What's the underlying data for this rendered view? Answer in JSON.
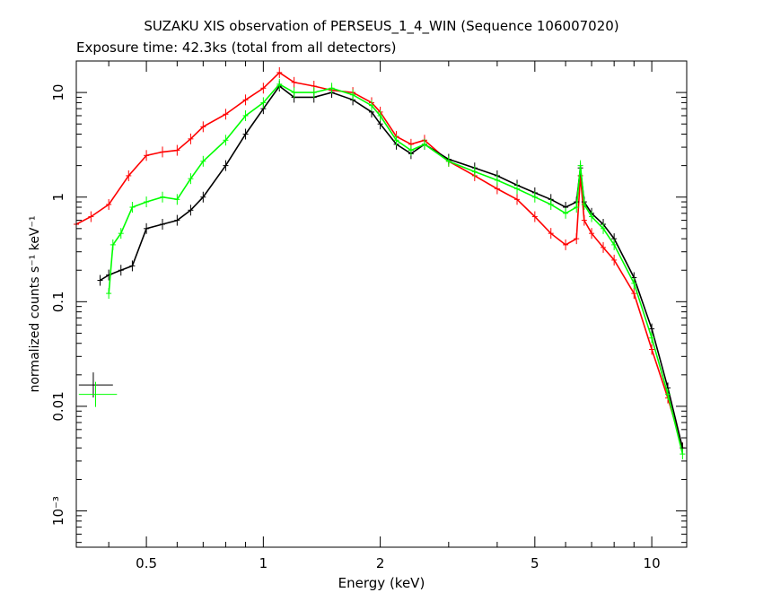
{
  "chart_data": {
    "type": "scatter",
    "title": "SUZAKU XIS observation of PERSEUS_1_4_WIN (Sequence 106007020)",
    "subtitle": "Exposure time: 42.3ks (total from all detectors)",
    "xlabel": "Energy (keV)",
    "ylabel": "normalized counts s⁻¹ keV⁻¹",
    "xscale": "log",
    "yscale": "log",
    "xlim": [
      0.33,
      12.3
    ],
    "ylim": [
      0.00045,
      20
    ],
    "x_ticks": [
      {
        "value": 0.5,
        "label": "0.5"
      },
      {
        "value": 1,
        "label": "1"
      },
      {
        "value": 2,
        "label": "2"
      },
      {
        "value": 5,
        "label": "5"
      },
      {
        "value": 10,
        "label": "10"
      }
    ],
    "y_ticks": [
      {
        "value": 10,
        "label": "10"
      },
      {
        "value": 1,
        "label": "1"
      },
      {
        "value": 0.1,
        "label": "0.1"
      },
      {
        "value": 0.01,
        "label": "0.01"
      },
      {
        "value": 0.001,
        "label": "10⁻³"
      }
    ],
    "grid": false,
    "series": [
      {
        "color": "#ff0000",
        "x": [
          0.33,
          0.36,
          0.4,
          0.45,
          0.5,
          0.55,
          0.6,
          0.65,
          0.7,
          0.8,
          0.9,
          1.0,
          1.1,
          1.2,
          1.35,
          1.5,
          1.7,
          1.9,
          2.0,
          2.2,
          2.4,
          2.6,
          3.0,
          3.5,
          4.0,
          4.5,
          5.0,
          5.5,
          6.0,
          6.4,
          6.55,
          6.7,
          7.0,
          7.5,
          8.0,
          9.0,
          10.0,
          11.0,
          12.0
        ],
        "y": [
          0.55,
          0.65,
          0.85,
          1.6,
          2.5,
          2.7,
          2.8,
          3.6,
          4.7,
          6.2,
          8.5,
          11.0,
          15.5,
          12.5,
          11.5,
          10.5,
          10.0,
          8.0,
          6.5,
          3.8,
          3.2,
          3.5,
          2.2,
          1.6,
          1.2,
          0.95,
          0.65,
          0.45,
          0.35,
          0.4,
          1.6,
          0.6,
          0.45,
          0.33,
          0.25,
          0.12,
          0.035,
          0.012,
          0.004
        ]
      },
      {
        "color": "#000000",
        "x": [
          0.38,
          0.4,
          0.43,
          0.46,
          0.5,
          0.55,
          0.6,
          0.65,
          0.7,
          0.8,
          0.9,
          1.0,
          1.1,
          1.2,
          1.35,
          1.5,
          1.7,
          1.9,
          2.0,
          2.2,
          2.4,
          2.6,
          3.0,
          3.5,
          4.0,
          4.5,
          5.0,
          5.5,
          6.0,
          6.4,
          6.55,
          6.7,
          7.0,
          7.5,
          8.0,
          9.0,
          10.0,
          11.0,
          12.0
        ],
        "y": [
          0.16,
          0.18,
          0.2,
          0.22,
          0.5,
          0.55,
          0.6,
          0.75,
          1.0,
          2.0,
          4.0,
          7.0,
          11.5,
          9.0,
          9.0,
          10.0,
          8.5,
          6.5,
          5.0,
          3.2,
          2.6,
          3.2,
          2.3,
          1.9,
          1.6,
          1.3,
          1.1,
          0.95,
          0.8,
          0.9,
          1.9,
          0.9,
          0.7,
          0.55,
          0.4,
          0.17,
          0.055,
          0.015,
          0.004
        ]
      },
      {
        "color": "#00ff00",
        "x": [
          0.4,
          0.41,
          0.43,
          0.46,
          0.5,
          0.55,
          0.6,
          0.65,
          0.7,
          0.8,
          0.9,
          1.0,
          1.1,
          1.2,
          1.35,
          1.5,
          1.7,
          1.9,
          2.0,
          2.2,
          2.4,
          2.6,
          3.0,
          3.5,
          4.0,
          4.5,
          5.0,
          5.5,
          6.0,
          6.4,
          6.55,
          6.7,
          7.0,
          7.5,
          8.0,
          9.0,
          10.0,
          11.0,
          12.0
        ],
        "y": [
          0.12,
          0.35,
          0.45,
          0.8,
          0.9,
          1.0,
          0.95,
          1.5,
          2.2,
          3.5,
          6.0,
          8.0,
          12.0,
          10.0,
          10.0,
          11.0,
          9.5,
          7.5,
          6.0,
          3.5,
          2.8,
          3.2,
          2.2,
          1.75,
          1.45,
          1.2,
          1.0,
          0.85,
          0.7,
          0.8,
          2.0,
          0.85,
          0.65,
          0.5,
          0.35,
          0.15,
          0.045,
          0.013,
          0.0035
        ]
      }
    ],
    "isolated_points": [
      {
        "color": "#000000",
        "x": 0.365,
        "y": 0.016,
        "x_err": [
          0.335,
          0.41
        ]
      },
      {
        "color": "#00ff00",
        "x": 0.37,
        "y": 0.013,
        "x_err": [
          0.335,
          0.42
        ]
      }
    ]
  }
}
